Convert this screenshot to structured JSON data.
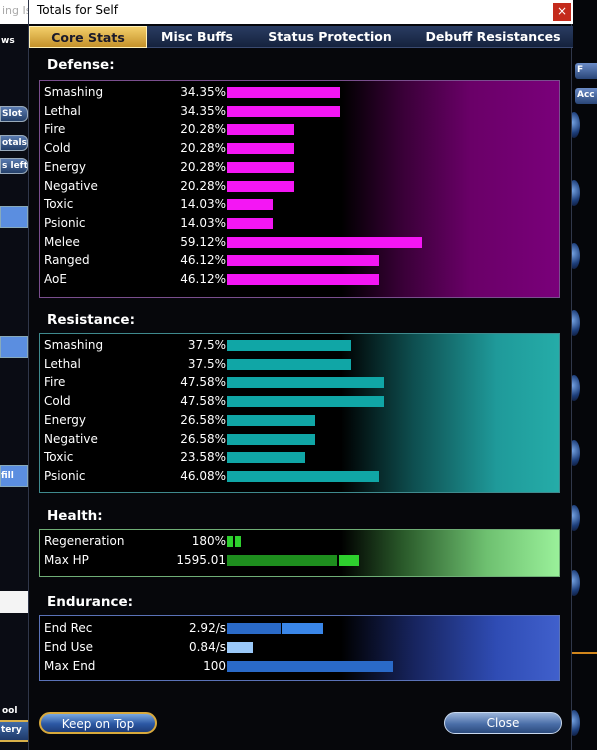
{
  "background": {
    "left_title": "ing Is",
    "left_items": [
      "ws",
      "Slot",
      "otals",
      "s left",
      "fill",
      "ool",
      "tery"
    ],
    "right_items": [
      "F",
      "Acc"
    ]
  },
  "window": {
    "title": "Totals for Self",
    "close_glyph": "×"
  },
  "tabs": [
    {
      "label": "Core Stats",
      "active": true
    },
    {
      "label": "Misc Buffs",
      "active": false
    },
    {
      "label": "Status Protection",
      "active": false
    },
    {
      "label": "Debuff Resistances",
      "active": false
    }
  ],
  "defense": {
    "header": "Defense:",
    "rows": [
      {
        "label": "Smashing",
        "value": "34.35%",
        "fill": 0.3435
      },
      {
        "label": "Lethal",
        "value": "34.35%",
        "fill": 0.3435
      },
      {
        "label": "Fire",
        "value": "20.28%",
        "fill": 0.2028
      },
      {
        "label": "Cold",
        "value": "20.28%",
        "fill": 0.2028
      },
      {
        "label": "Energy",
        "value": "20.28%",
        "fill": 0.2028
      },
      {
        "label": "Negative",
        "value": "20.28%",
        "fill": 0.2028
      },
      {
        "label": "Toxic",
        "value": "14.03%",
        "fill": 0.1403
      },
      {
        "label": "Psionic",
        "value": "14.03%",
        "fill": 0.1403
      },
      {
        "label": "Melee",
        "value": "59.12%",
        "fill": 0.5912
      },
      {
        "label": "Ranged",
        "value": "46.12%",
        "fill": 0.4612
      },
      {
        "label": "AoE",
        "value": "46.12%",
        "fill": 0.4612
      }
    ]
  },
  "resistance": {
    "header": "Resistance:",
    "rows": [
      {
        "label": "Smashing",
        "value": "37.5%",
        "fill": 0.375
      },
      {
        "label": "Lethal",
        "value": "37.5%",
        "fill": 0.375
      },
      {
        "label": "Fire",
        "value": "47.58%",
        "fill": 0.4758
      },
      {
        "label": "Cold",
        "value": "47.58%",
        "fill": 0.4758
      },
      {
        "label": "Energy",
        "value": "26.58%",
        "fill": 0.2658
      },
      {
        "label": "Negative",
        "value": "26.58%",
        "fill": 0.2658
      },
      {
        "label": "Toxic",
        "value": "23.58%",
        "fill": 0.2358
      },
      {
        "label": "Psionic",
        "value": "46.08%",
        "fill": 0.4608
      }
    ]
  },
  "health": {
    "header": "Health:",
    "rows": [
      {
        "label": "Regeneration",
        "value": "180%"
      },
      {
        "label": "Max HP",
        "value": "1595.01"
      }
    ]
  },
  "endurance": {
    "header": "Endurance:",
    "rows": [
      {
        "label": "End Rec",
        "value": "2.92/s"
      },
      {
        "label": "End Use",
        "value": "0.84/s"
      },
      {
        "label": "Max End",
        "value": "100"
      }
    ]
  },
  "buttons": {
    "keep_on_top": "Keep on Top",
    "close": "Close"
  }
}
